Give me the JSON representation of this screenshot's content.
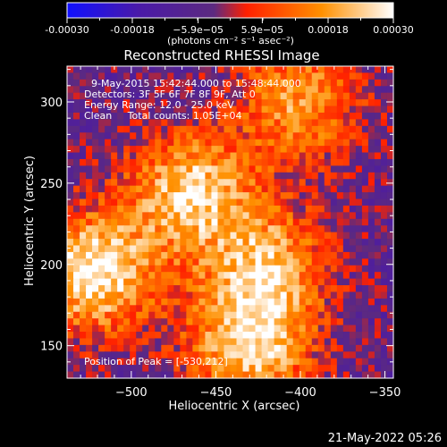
{
  "colorbar": {
    "tick_labels": [
      "-0.00030",
      "-0.00018",
      "−5.9e−05",
      "5.9e−05",
      "0.00018",
      "0.00030"
    ],
    "tick_values": [
      -0.0003,
      -0.00018,
      -5.9e-05,
      5.9e-05,
      0.00018,
      0.0003
    ],
    "range": [
      -0.0003,
      0.0003
    ],
    "unit_label": "(photons cm⁻² s⁻¹ asec⁻²)",
    "colors": [
      "#1010ff",
      "#4a1aa8",
      "#5c2a80",
      "#ff2000",
      "#ff9000",
      "#ffffff"
    ]
  },
  "annotations": {
    "time_range": "9-May-2015 15:42:44.000 to 15:48:44.000",
    "detectors": "Detectors: 3F 5F 6F 7F 8F 9F, Att 0",
    "energy_range": "Energy Range: 12.0 - 25.0 keV",
    "clean": "Clean     Total counts: 1.05E+04",
    "peak": "Position of Peak = [-530,212]"
  },
  "footer": {
    "timestamp": "21-May-2022 05:26"
  },
  "chart_data": {
    "type": "heatmap",
    "title": "Reconstructed RHESSI Image",
    "xlabel": "Heliocentric X (arcsec)",
    "ylabel": "Heliocentric Y (arcsec)",
    "xlim": [
      -538,
      -345
    ],
    "ylim": [
      130,
      322
    ],
    "x_ticks": [
      -500,
      -450,
      -400,
      -350
    ],
    "y_ticks": [
      150,
      200,
      250,
      300
    ],
    "peak": [
      -530,
      212
    ],
    "peak_value": 0.0003,
    "approx_bright_regions": [
      {
        "x": -522,
        "y": 195,
        "value": 0.0003
      },
      {
        "x": -465,
        "y": 245,
        "value": 0.00025
      },
      {
        "x": -420,
        "y": 200,
        "value": 0.0002
      },
      {
        "x": -400,
        "y": 300,
        "value": 0.00018
      },
      {
        "x": -430,
        "y": 150,
        "value": 0.00025
      }
    ]
  }
}
